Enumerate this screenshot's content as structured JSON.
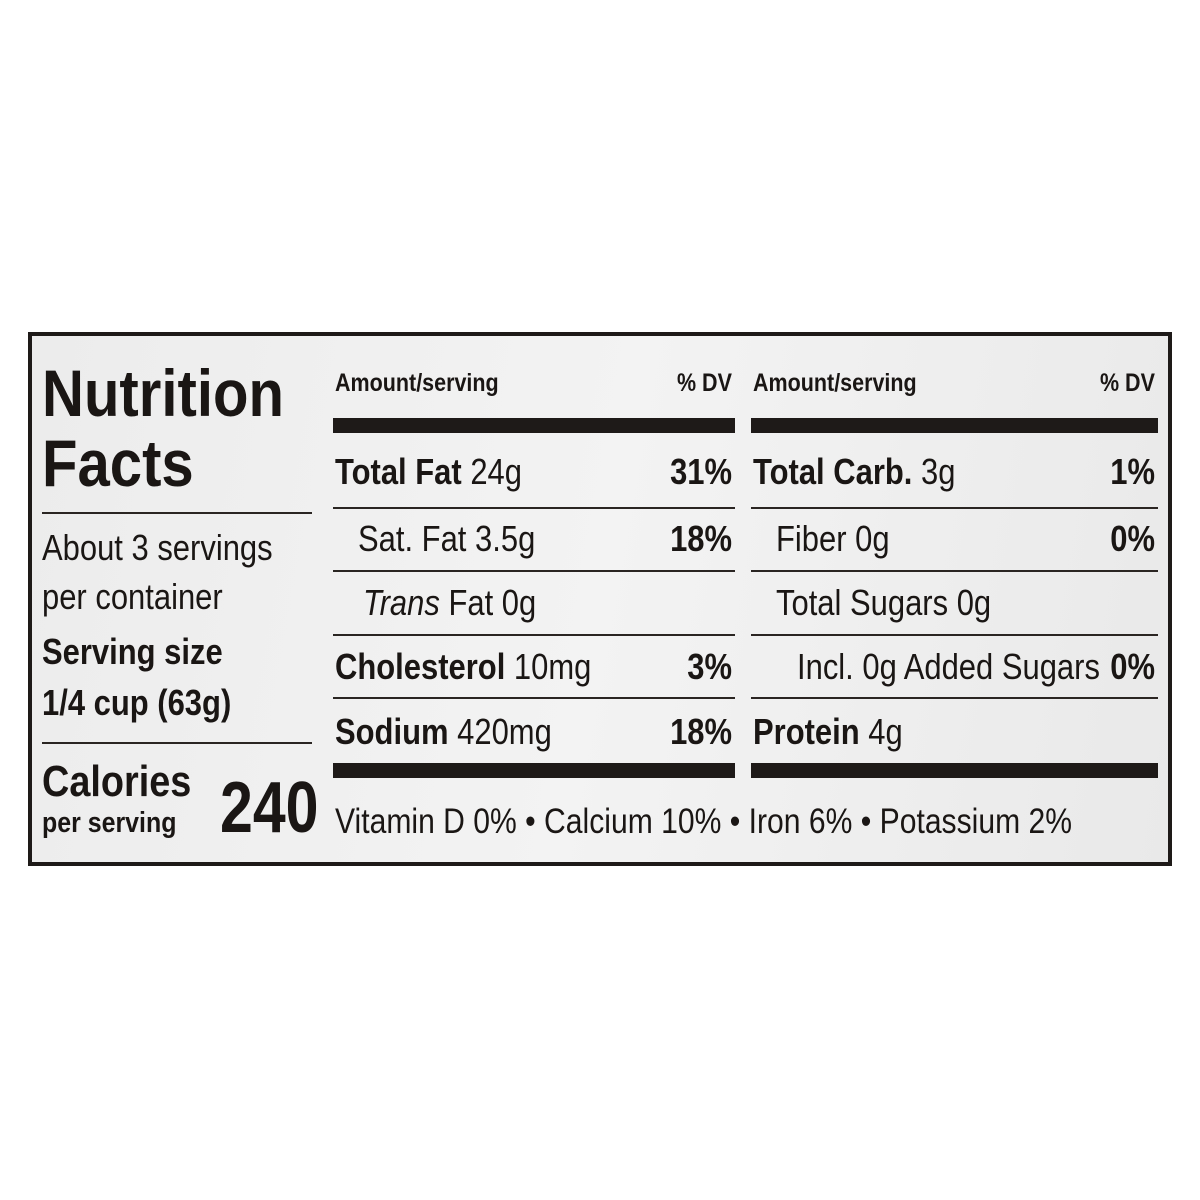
{
  "title": [
    "Nutrition",
    "Facts"
  ],
  "servings": [
    "About 3 servings",
    "per container"
  ],
  "serving_size": {
    "label": "Serving size",
    "value": "1/4 cup (63g)"
  },
  "calories": {
    "label": "Calories",
    "sublabel": "per serving",
    "value": "240"
  },
  "columns": [
    {
      "header_amount": "Amount/serving",
      "header_dv": "% DV",
      "rows": [
        {
          "name": "Total Fat",
          "amount": "24g",
          "dv": "31%",
          "bold": true,
          "indent": 0
        },
        {
          "name": "Sat. Fat",
          "amount": "3.5g",
          "dv": "18%",
          "bold": false,
          "indent": 1
        },
        {
          "name_italic": "Trans",
          "name": "Fat",
          "amount": "0g",
          "dv": "",
          "bold": false,
          "indent": 2
        },
        {
          "name": "Cholesterol",
          "amount": "10mg",
          "dv": "3%",
          "bold": true,
          "indent": 0
        },
        {
          "name": "Sodium",
          "amount": "420mg",
          "dv": "18%",
          "bold": true,
          "indent": 0
        }
      ]
    },
    {
      "header_amount": "Amount/serving",
      "header_dv": "% DV",
      "rows": [
        {
          "name": "Total Carb.",
          "amount": "3g",
          "dv": "1%",
          "bold": true,
          "indent": 0
        },
        {
          "name": "Fiber",
          "amount": "0g",
          "dv": "0%",
          "bold": false,
          "indent": 1
        },
        {
          "name": "Total Sugars",
          "amount": "0g",
          "dv": "",
          "bold": false,
          "indent": 1
        },
        {
          "name": "Incl. 0g Added Sugars",
          "amount": "",
          "dv": "0%",
          "bold": false,
          "indent": 2
        },
        {
          "name": "Protein",
          "amount": "4g",
          "dv": "",
          "bold": true,
          "indent": 0
        }
      ]
    }
  ],
  "vitamins": "Vitamin D 0% • Calcium 10% • Iron 6% • Potassium 2%"
}
